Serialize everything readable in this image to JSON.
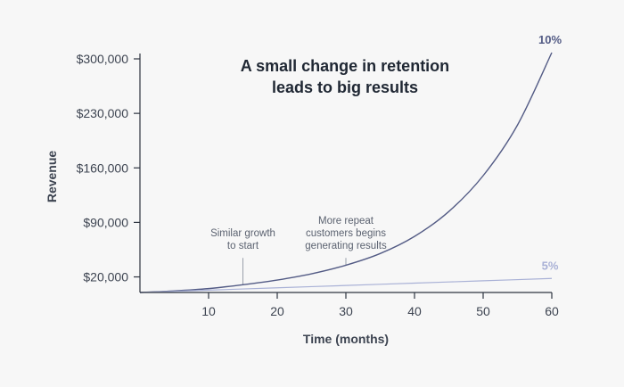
{
  "chart_data": {
    "type": "line",
    "title": [
      "A small change in retention",
      "leads to big results"
    ],
    "xlabel": "Time (months)",
    "ylabel": "Revenue",
    "xlim": [
      0,
      60
    ],
    "ylim": [
      0,
      300000
    ],
    "xticks": [
      10,
      20,
      30,
      40,
      50,
      60
    ],
    "xtick_labels": [
      "10",
      "20",
      "30",
      "40",
      "50",
      "60"
    ],
    "yticks": [
      20000,
      90000,
      160000,
      230000,
      300000
    ],
    "ytick_labels": [
      "$20,000",
      "$90,000",
      "$160,000",
      "$230,000",
      "$300,000"
    ],
    "grid": false,
    "series": [
      {
        "name": "10%",
        "color": "#535b85",
        "x": [
          0,
          5,
          10,
          15,
          20,
          25,
          30,
          35,
          40,
          45,
          50,
          55,
          60
        ],
        "values": [
          0,
          2000,
          5000,
          10000,
          16000,
          24000,
          35000,
          50000,
          72000,
          104000,
          150000,
          215000,
          308000
        ]
      },
      {
        "name": "5%",
        "color": "#a9b1d6",
        "x": [
          0,
          10,
          20,
          30,
          40,
          50,
          60
        ],
        "values": [
          0,
          3000,
          6000,
          9000,
          12000,
          15000,
          18000
        ]
      }
    ],
    "annotations": [
      {
        "lines": [
          "Similar growth",
          "to start"
        ],
        "x": 15,
        "y": 49000
      },
      {
        "lines": [
          "More repeat",
          "customers begins",
          "generating results"
        ],
        "x": 30,
        "y": 49000
      }
    ]
  }
}
